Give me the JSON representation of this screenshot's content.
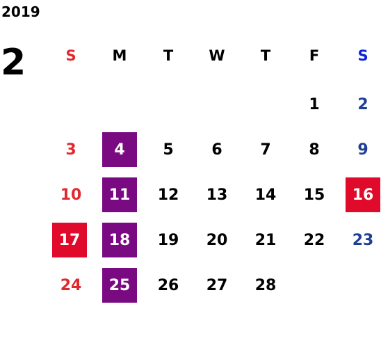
{
  "calendar": {
    "year": "2019",
    "month": "2",
    "weekdays": [
      "S",
      "M",
      "T",
      "W",
      "T",
      "F",
      "S"
    ],
    "weeks": [
      [
        "",
        "",
        "",
        "",
        "",
        "1",
        "2"
      ],
      [
        "3",
        "4",
        "5",
        "6",
        "7",
        "8",
        "9"
      ],
      [
        "10",
        "11",
        "12",
        "13",
        "14",
        "15",
        "16"
      ],
      [
        "17",
        "18",
        "19",
        "20",
        "21",
        "22",
        "23"
      ],
      [
        "24",
        "25",
        "26",
        "27",
        "28",
        "",
        ""
      ]
    ],
    "highlighted_purple": [
      "4",
      "11",
      "18",
      "25"
    ],
    "highlighted_red": [
      "16",
      "17"
    ]
  },
  "colors": {
    "sunday": "#e0282d",
    "saturday": "#1f3f96",
    "saturday_header": "#0a22d8",
    "purple_highlight": "#7a0a82",
    "red_highlight": "#e00a2a"
  }
}
